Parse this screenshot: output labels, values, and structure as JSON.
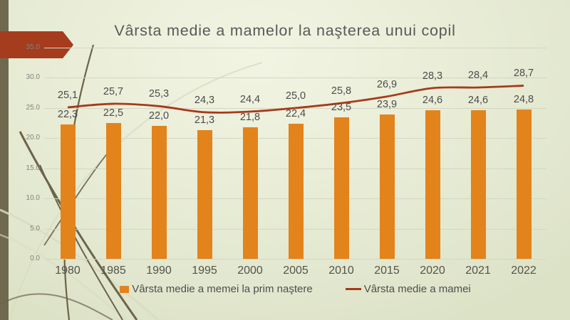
{
  "slide": {
    "title": "Vârsta medie a mamelor la naşterea unui copil"
  },
  "colors": {
    "bar_orange": "#E3831C",
    "line_red": "#A63A1B",
    "arrow_red": "#A63C1E",
    "accent_strip_olive": "#6F6A4F",
    "gridline": "#D3D7C3",
    "title_text": "#595959",
    "axis_tick_text": "#82827A",
    "value_label_text": "#4C4C4C",
    "year_label_text": "#55534B",
    "legend_text": "#4E4E4E"
  },
  "chart_data": {
    "type": "bar+line",
    "title": "Vârsta medie a mamelor la naşterea unui copil",
    "categories": [
      "1980",
      "1985",
      "1990",
      "1995",
      "2000",
      "2005",
      "2010",
      "2015",
      "2020",
      "2021",
      "2022"
    ],
    "series": [
      {
        "name": "Vârsta medie a memei la prim naştere",
        "type": "bar",
        "values": [
          22.3,
          22.5,
          22.0,
          21.3,
          21.8,
          22.4,
          23.5,
          23.9,
          24.6,
          24.6,
          24.8
        ]
      },
      {
        "name": "Vârsta medie a mamei",
        "type": "line",
        "values": [
          25.1,
          25.7,
          25.3,
          24.3,
          24.4,
          25.0,
          25.8,
          26.9,
          28.3,
          28.4,
          28.7
        ]
      }
    ],
    "xlabel": "",
    "ylabel": "",
    "ylim": [
      0,
      35
    ],
    "ytick_step": 5,
    "ytick_labels": [
      "0.0",
      "5.0",
      "10.0",
      "15.0",
      "20.0",
      "25.0",
      "30.0",
      "35.0"
    ],
    "grid": true,
    "legend_position": "bottom",
    "decimal_separator": ","
  }
}
